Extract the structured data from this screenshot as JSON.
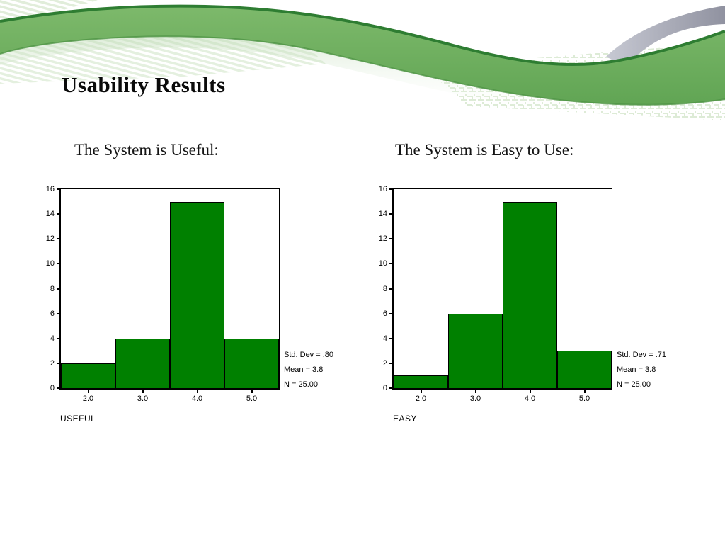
{
  "slide": {
    "title": "Usability Results",
    "decoration_colors": {
      "band_green": "#7db96b",
      "band_green_dark": "#61a554",
      "band_edge": "#2e7d32",
      "band_edge_soft": "#4d9344",
      "gray_band": "#9092a0",
      "gray_band_light": "#c7c9d3",
      "texture_green": "#d9e9d1"
    }
  },
  "chart_data": [
    {
      "type": "bar",
      "title": "The System is Useful:",
      "categories": [
        "2.0",
        "3.0",
        "4.0",
        "5.0"
      ],
      "values": [
        2,
        4,
        15,
        4
      ],
      "xlabel": "USEFUL",
      "ylabel": "",
      "ylim": [
        0,
        16
      ],
      "yticks": [
        0,
        2,
        4,
        6,
        8,
        10,
        12,
        14,
        16
      ],
      "bar_color": "#008000",
      "bar_border_color": "#000000",
      "annotations": [
        "Std. Dev = .80",
        "Mean = 3.8",
        "N = 25.00"
      ],
      "grid": false,
      "legend": "none"
    },
    {
      "type": "bar",
      "title": "The System is Easy to Use:",
      "categories": [
        "2.0",
        "3.0",
        "4.0",
        "5.0"
      ],
      "values": [
        1,
        6,
        15,
        3
      ],
      "xlabel": "EASY",
      "ylabel": "",
      "ylim": [
        0,
        16
      ],
      "yticks": [
        0,
        2,
        4,
        6,
        8,
        10,
        12,
        14,
        16
      ],
      "bar_color": "#008000",
      "bar_border_color": "#000000",
      "annotations": [
        "Std. Dev = .71",
        "Mean = 3.8",
        "N = 25.00"
      ],
      "grid": false,
      "legend": "none"
    }
  ]
}
